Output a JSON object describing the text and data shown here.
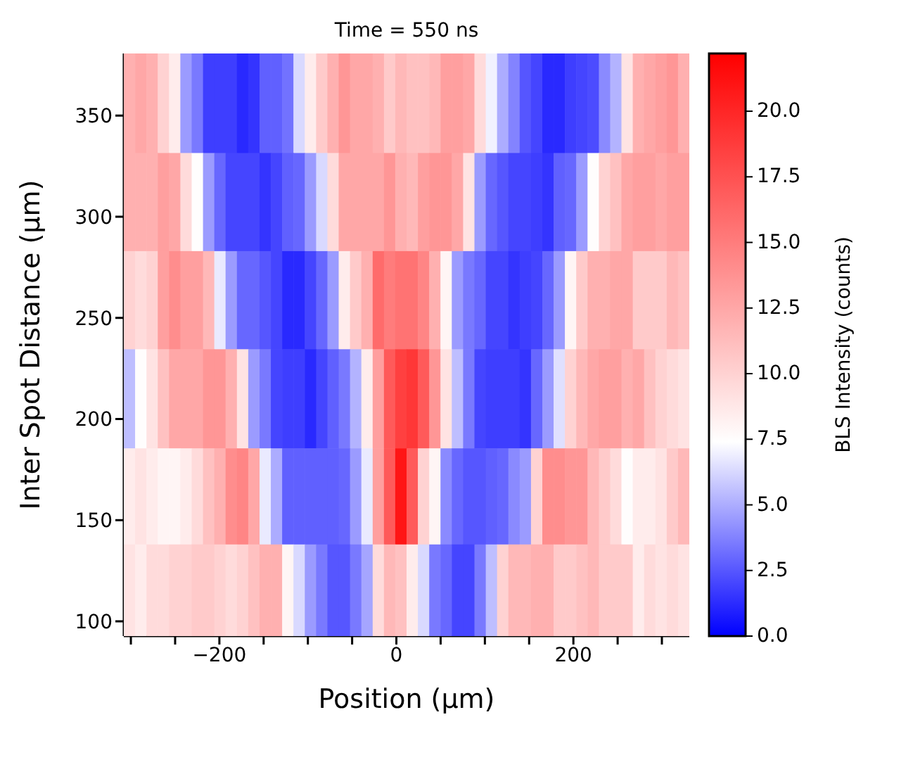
{
  "chart_data": {
    "type": "heatmap",
    "title": "Time = 550 ns",
    "xlabel": "Position (μm)",
    "ylabel": "Inter Spot Distance (μm)",
    "clabel": "BLS Intensity (counts)",
    "x": [
      -301.6,
      -288.8,
      -276.0,
      -263.3,
      -250.5,
      -237.7,
      -224.9,
      -212.1,
      -199.4,
      -186.6,
      -173.8,
      -161.0,
      -148.2,
      -135.5,
      -122.7,
      -109.9,
      -97.1,
      -84.3,
      -71.6,
      -58.8,
      -46.0,
      -33.2,
      -20.4,
      -7.7,
      5.1,
      17.9,
      30.7,
      43.5,
      56.2,
      69.0,
      81.8,
      94.6,
      107.4,
      120.1,
      132.9,
      145.7,
      158.5,
      171.3,
      184.0,
      196.8,
      209.6,
      222.4,
      235.2,
      247.9,
      260.7,
      273.5,
      286.3,
      299.1,
      311.8,
      324.6
    ],
    "y": [
      356,
      307,
      259,
      210,
      161,
      115
    ],
    "cells": [
      [
        12,
        12.5,
        12,
        10,
        8.5,
        4.5,
        3.5,
        1.8,
        1.8,
        1.8,
        1.2,
        1.5,
        2.8,
        2.8,
        3.3,
        6.3,
        8.5,
        10.5,
        12,
        13.5,
        12.5,
        12.5,
        12,
        10.5,
        11.5,
        11,
        11,
        11.5,
        13,
        13,
        12.5,
        9.5,
        7,
        5,
        3.8,
        2.5,
        2,
        1.2,
        1.2,
        1.8,
        2,
        2.2,
        4,
        5.2,
        9,
        12,
        12.5,
        13,
        13.5,
        12
      ],
      [
        12,
        12,
        12,
        13,
        12.5,
        9.5,
        7.5,
        4.5,
        3,
        2,
        2,
        2,
        1.5,
        2,
        2.8,
        3,
        4.5,
        6.3,
        9.5,
        12.5,
        12.5,
        12.5,
        12.5,
        13.5,
        12,
        11.5,
        13,
        13.5,
        13.5,
        12.5,
        9,
        4.5,
        3,
        2.5,
        2,
        2,
        1.8,
        1.5,
        2.8,
        3,
        4.5,
        7.5,
        10,
        11,
        12.5,
        13,
        13,
        12.5,
        13,
        13
      ],
      [
        10,
        9.5,
        10,
        13,
        14,
        13,
        13,
        11.5,
        6.8,
        4.5,
        3,
        3,
        2.5,
        2,
        1.2,
        1.2,
        2,
        3,
        4.5,
        8.5,
        10.5,
        12,
        16,
        15,
        15.5,
        15.5,
        14.5,
        12,
        8,
        4.5,
        3.5,
        3,
        2,
        2,
        1.5,
        1.8,
        2,
        3,
        4.5,
        8,
        10.5,
        12,
        12,
        12.5,
        12.5,
        10.5,
        10.5,
        10.5,
        11.5,
        11
      ],
      [
        5.5,
        7.5,
        9,
        11,
        12.5,
        12.5,
        12.5,
        13.5,
        13.5,
        12,
        9,
        4.5,
        3.5,
        2,
        1.8,
        1.8,
        1.2,
        2,
        2.8,
        3.5,
        5.2,
        8.5,
        13,
        17,
        18.5,
        19,
        17,
        13.5,
        9,
        5.5,
        3.5,
        2,
        1.8,
        1.8,
        1.8,
        1.5,
        3,
        4.5,
        6.5,
        10,
        11.5,
        12.5,
        13,
        13,
        12,
        12.5,
        11,
        10,
        9.5,
        9
      ],
      [
        8.5,
        9,
        8.5,
        8,
        8,
        8.5,
        9.5,
        11,
        12,
        14,
        14.5,
        12.5,
        6.8,
        5,
        2.8,
        2.8,
        2.8,
        2.8,
        2.8,
        3,
        4.5,
        6.8,
        13,
        17,
        21,
        17,
        10,
        8,
        4,
        3,
        2.5,
        2.5,
        2.8,
        3,
        4,
        4.5,
        10,
        14,
        14,
        13.5,
        13.5,
        11.5,
        10.5,
        9.5,
        7.5,
        8.5,
        8.5,
        9,
        10.5,
        11.5
      ],
      [
        9,
        8.5,
        9.5,
        9.5,
        10,
        10,
        10.5,
        10.5,
        10,
        9.5,
        10,
        11,
        12,
        12,
        8,
        6.3,
        4.5,
        3.5,
        2.5,
        2.5,
        3.5,
        4.8,
        9.5,
        11.5,
        11,
        8.5,
        6.3,
        3.5,
        3,
        2,
        2,
        3.5,
        5.5,
        10,
        11.5,
        11.5,
        12,
        12,
        10.5,
        10.5,
        11,
        11.5,
        10.5,
        10.5,
        10.5,
        8.5,
        9.5,
        9,
        9.5,
        9
      ]
    ],
    "xlim": [
      -308,
      331
    ],
    "xticks": [
      {
        "value": -300,
        "label": null
      },
      {
        "value": -250,
        "label": null
      },
      {
        "value": -200,
        "label": "−200"
      },
      {
        "value": -150,
        "label": null
      },
      {
        "value": -100,
        "label": null
      },
      {
        "value": -50,
        "label": null
      },
      {
        "value": 0,
        "label": "0"
      },
      {
        "value": 50,
        "label": null
      },
      {
        "value": 100,
        "label": null
      },
      {
        "value": 150,
        "label": null
      },
      {
        "value": 200,
        "label": "200"
      },
      {
        "value": 250,
        "label": null
      },
      {
        "value": 300,
        "label": null
      }
    ],
    "ylim": [
      92.7,
      380.7
    ],
    "yticks": [
      100,
      150,
      200,
      250,
      300,
      350
    ],
    "clim": [
      0,
      22.2
    ],
    "cticks": [
      {
        "value": 0,
        "label": "0.0"
      },
      {
        "value": 2.5,
        "label": "2.5"
      },
      {
        "value": 5,
        "label": "5.0"
      },
      {
        "value": 7.5,
        "label": "7.5"
      },
      {
        "value": 10,
        "label": "10.0"
      },
      {
        "value": 12.5,
        "label": "12.5"
      },
      {
        "value": 15,
        "label": "15.0"
      },
      {
        "value": 17.5,
        "label": "17.5"
      },
      {
        "value": 20,
        "label": "20.0"
      }
    ]
  }
}
